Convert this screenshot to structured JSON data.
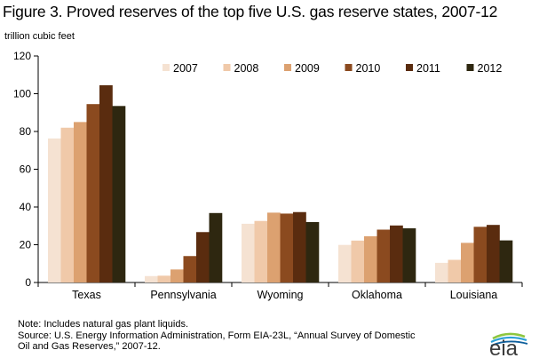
{
  "chart_data": {
    "type": "bar",
    "title": "Figure 3. Proved reserves of the top five U.S. gas reserve states, 2007-12",
    "ylabel": "trillion cubic feet",
    "xlabel": "",
    "ylim": [
      0,
      120
    ],
    "yticks": [
      0,
      20,
      40,
      60,
      80,
      100,
      120
    ],
    "grid": false,
    "legend_position": "top-right",
    "categories": [
      "Texas",
      "Pennsylvania",
      "Wyoming",
      "Oklahoma",
      "Louisiana"
    ],
    "series": [
      {
        "name": "2007",
        "color": "#f5e2d2",
        "values": [
          76.3,
          3.4,
          31.1,
          19.9,
          10.4
        ]
      },
      {
        "name": "2008",
        "color": "#f0c9a9",
        "values": [
          82.0,
          3.6,
          32.6,
          22.2,
          12.0
        ]
      },
      {
        "name": "2009",
        "color": "#dca170",
        "values": [
          85.0,
          6.9,
          37.0,
          24.5,
          21.0
        ]
      },
      {
        "name": "2010",
        "color": "#8b4a1f",
        "values": [
          94.5,
          14.0,
          36.5,
          28.0,
          29.5
        ]
      },
      {
        "name": "2011",
        "color": "#5a2c0f",
        "values": [
          104.5,
          26.7,
          37.3,
          30.2,
          30.5
        ]
      },
      {
        "name": "2012",
        "color": "#2e2710",
        "values": [
          93.5,
          36.8,
          32.0,
          28.7,
          22.3
        ]
      }
    ]
  },
  "notes": {
    "note": "Note: Includes natural gas plant liquids.",
    "source_line1": "Source: U.S. Energy Information Administration, Form EIA-23L, “Annual Survey of Domestic",
    "source_line2": "Oil and Gas Reserves,” 2007-12."
  },
  "logo": {
    "text": "eia",
    "colors": {
      "text": "#3c3c3c",
      "arc_top": "#8dc63f",
      "arc_mid": "#2a9fd6",
      "arc_low": "#0f5f9c"
    }
  }
}
